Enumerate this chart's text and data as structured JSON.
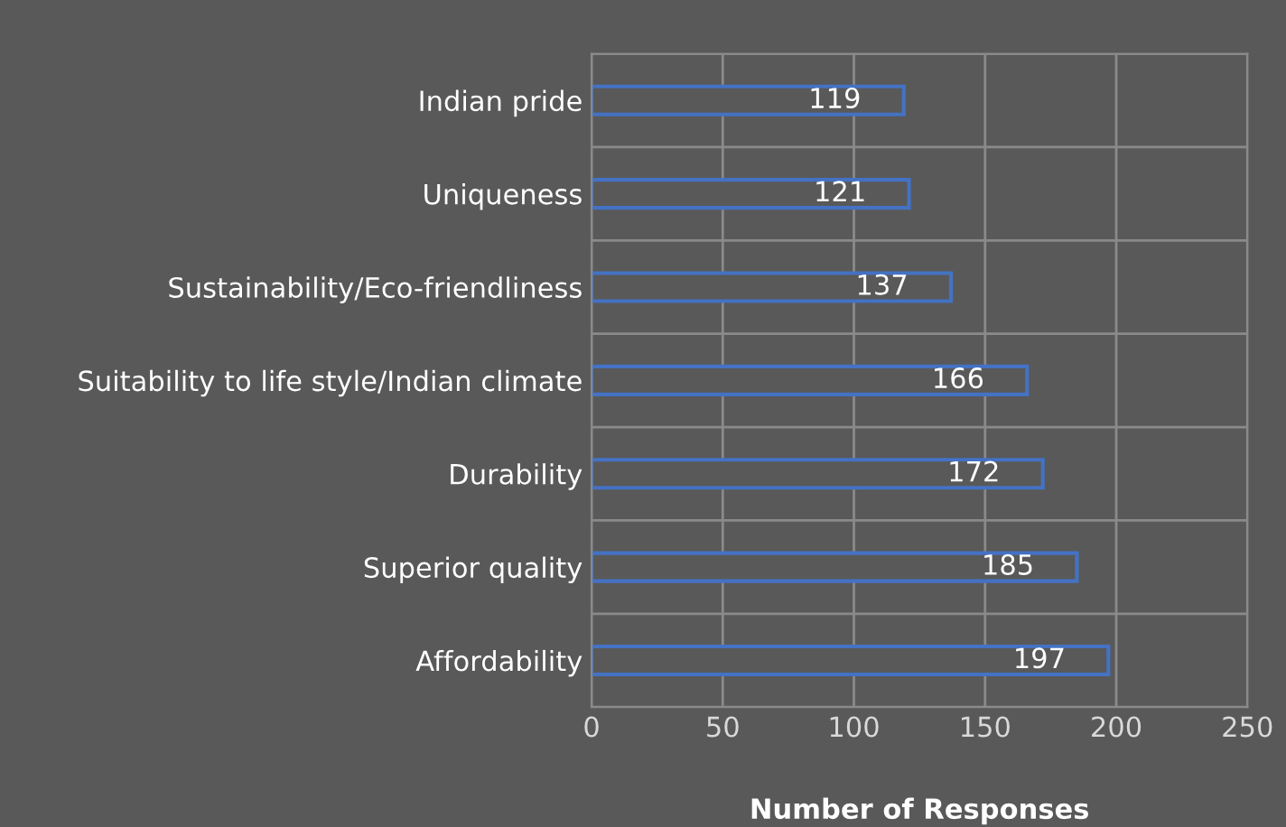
{
  "chart_data": {
    "type": "bar",
    "orientation": "horizontal",
    "xlabel": "Number of Responses",
    "categories": [
      "Indian pride",
      "Uniqueness",
      "Sustainability/Eco-friendliness",
      "Suitability to life style/Indian climate",
      "Durability",
      "Superior quality",
      "Affordability"
    ],
    "values": [
      119,
      121,
      137,
      166,
      172,
      185,
      197
    ],
    "color": "#4472c4",
    "data_labels": true,
    "xlim": [
      0,
      250
    ],
    "xticks": [
      0,
      50,
      100,
      150,
      200,
      250
    ],
    "grid": true,
    "legend": false
  }
}
